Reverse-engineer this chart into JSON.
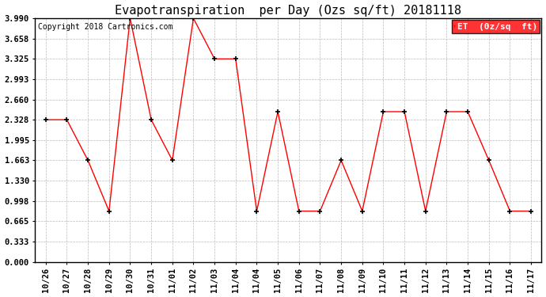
{
  "title": "Evapotranspiration  per Day (Ozs sq/ft) 20181118",
  "copyright": "Copyright 2018 Cartronics.com",
  "x_labels": [
    "10/26",
    "10/27",
    "10/28",
    "10/29",
    "10/30",
    "10/31",
    "11/01",
    "11/02",
    "11/03",
    "11/04",
    "11/04",
    "11/05",
    "11/06",
    "11/07",
    "11/08",
    "11/09",
    "11/10",
    "11/11",
    "11/12",
    "11/13",
    "11/14",
    "11/15",
    "11/16",
    "11/17"
  ],
  "y_values": [
    2.328,
    2.328,
    1.663,
    0.831,
    3.99,
    2.328,
    1.663,
    3.99,
    3.325,
    3.325,
    0.831,
    2.46,
    0.831,
    0.831,
    1.663,
    0.831,
    2.46,
    2.46,
    0.831,
    2.46,
    2.46,
    1.663,
    0.831,
    0.831
  ],
  "ylim_min": 0.0,
  "ylim_max": 3.99,
  "yticks": [
    0.0,
    0.333,
    0.665,
    0.998,
    1.33,
    1.663,
    1.995,
    2.328,
    2.66,
    2.993,
    3.325,
    3.658,
    3.99
  ],
  "line_color": "red",
  "marker_color": "black",
  "background_color": "#ffffff",
  "grid_color": "#bbbbbb",
  "title_fontsize": 11,
  "copyright_fontsize": 7,
  "tick_fontsize": 7.5,
  "legend_fontsize": 8
}
